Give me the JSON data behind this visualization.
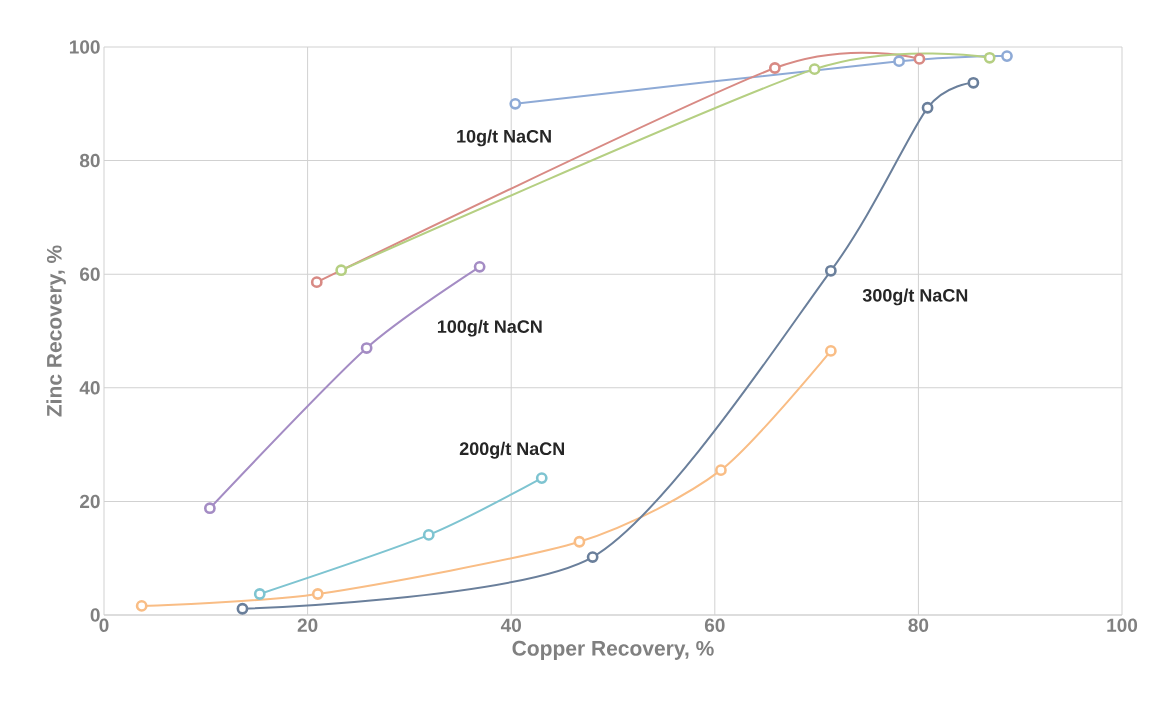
{
  "chart_data": {
    "type": "line",
    "xlabel": "Copper Recovery, %",
    "ylabel": "Zinc Recovery, %",
    "xlim": [
      0,
      100
    ],
    "ylim": [
      0,
      100
    ],
    "xticks": [
      0,
      20,
      40,
      60,
      80,
      100
    ],
    "yticks": [
      0,
      20,
      40,
      60,
      80,
      100
    ],
    "grid": true,
    "marker": "circle",
    "line_style": "solid",
    "series": [
      {
        "color": "#8eaad6",
        "x": [
          40.4,
          78.1,
          88.7
        ],
        "values": [
          90.0,
          97.5,
          98.4
        ]
      },
      {
        "color": "#d88a84",
        "x": [
          20.9,
          65.9,
          80.1
        ],
        "values": [
          58.6,
          96.3,
          97.9
        ]
      },
      {
        "color": "#b5cf82",
        "x": [
          23.3,
          69.8,
          87.0
        ],
        "values": [
          60.7,
          96.1,
          98.1
        ]
      },
      {
        "color": "#a48cc4",
        "x": [
          10.4,
          25.8,
          36.9
        ],
        "values": [
          18.8,
          47.0,
          61.3
        ]
      },
      {
        "color": "#7ec4d1",
        "x": [
          15.3,
          31.9,
          43.0
        ],
        "values": [
          3.7,
          14.1,
          24.1
        ]
      },
      {
        "color": "#f9bd85",
        "x": [
          3.7,
          21.0,
          46.7,
          60.6,
          71.4
        ],
        "values": [
          1.6,
          3.7,
          12.9,
          25.5,
          46.5
        ]
      },
      {
        "color": "#6a7f9b",
        "x": [
          13.6,
          48.0,
          71.4,
          80.9,
          85.4
        ],
        "values": [
          1.1,
          10.2,
          60.6,
          89.3,
          93.7
        ]
      }
    ],
    "annotations": [
      "10g/t NaCN",
      "100g/t NaCN",
      "200g/t NaCN",
      "300g/t NaCN"
    ]
  }
}
